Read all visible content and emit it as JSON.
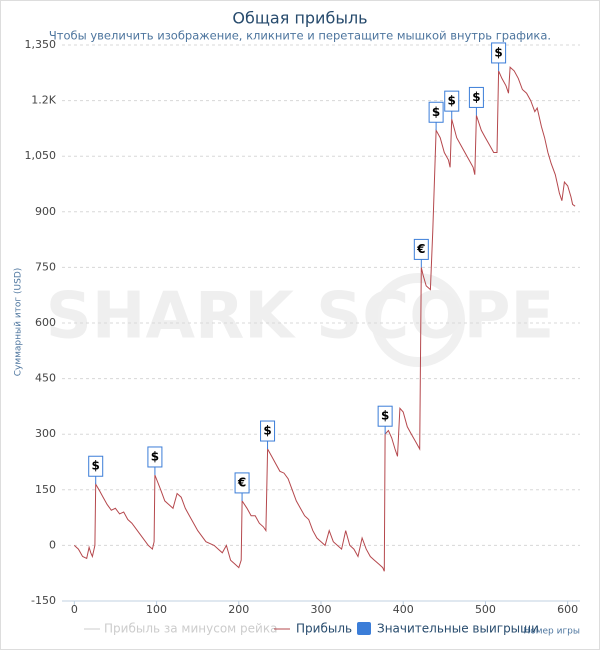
{
  "chart_data": {
    "type": "line",
    "title": "Общая прибыль",
    "subtitle": "Чтобы увеличить изображение, кликните и перетащите мышкой внутрь графика.",
    "ylabel": "Суммарный итог (USD)",
    "xlabel": "Номер игры",
    "watermark": "SHARK SCOPE",
    "xlim": [
      -15,
      615
    ],
    "ylim": [
      -150,
      1350
    ],
    "xticks": [
      0,
      100,
      200,
      300,
      400,
      500,
      600
    ],
    "yticks": [
      -150,
      0,
      150,
      300,
      450,
      600,
      750,
      900,
      {
        "value": 1050,
        "label": "1,050"
      },
      {
        "value": 1200,
        "label": "1.2K"
      },
      {
        "value": 1350,
        "label": "1,350"
      }
    ],
    "grid": true,
    "hidden_series": [
      {
        "name": "Прибыль за минусом рейка",
        "color": "#cccccc"
      }
    ],
    "x": [
      0,
      5,
      10,
      15,
      18,
      20,
      22,
      25,
      26,
      30,
      35,
      40,
      45,
      50,
      55,
      60,
      65,
      70,
      80,
      90,
      95,
      97,
      98,
      105,
      110,
      115,
      120,
      125,
      130,
      135,
      140,
      145,
      150,
      160,
      170,
      175,
      180,
      185,
      190,
      195,
      200,
      203,
      204,
      210,
      215,
      220,
      225,
      230,
      233,
      235,
      240,
      245,
      250,
      255,
      260,
      265,
      270,
      275,
      280,
      285,
      290,
      295,
      300,
      305,
      310,
      315,
      320,
      325,
      330,
      335,
      340,
      345,
      350,
      355,
      360,
      365,
      370,
      375,
      377,
      378,
      382,
      386,
      390,
      393,
      396,
      400,
      405,
      410,
      415,
      420,
      422,
      424,
      428,
      433,
      436,
      440,
      445,
      450,
      455,
      457,
      459,
      465,
      470,
      475,
      480,
      485,
      487,
      489,
      495,
      500,
      505,
      510,
      514,
      516,
      520,
      525,
      528,
      530,
      535,
      540,
      545,
      550,
      555,
      560,
      563,
      568,
      572,
      576,
      580,
      585,
      588,
      590,
      593,
      596,
      600,
      604,
      606,
      609
    ],
    "series": [
      {
        "name": "Прибыль",
        "color": "#b5484d",
        "values": [
          0,
          -10,
          -30,
          -35,
          -5,
          -20,
          -30,
          0,
          165,
          150,
          130,
          110,
          95,
          100,
          85,
          90,
          70,
          60,
          30,
          0,
          -10,
          10,
          190,
          150,
          120,
          110,
          100,
          140,
          130,
          100,
          80,
          60,
          40,
          10,
          0,
          -10,
          -20,
          0,
          -40,
          -50,
          -60,
          -40,
          120,
          100,
          80,
          80,
          60,
          50,
          40,
          260,
          240,
          220,
          200,
          195,
          180,
          150,
          120,
          100,
          80,
          70,
          40,
          20,
          10,
          0,
          40,
          10,
          0,
          -10,
          40,
          0,
          -10,
          -30,
          20,
          -10,
          -30,
          -40,
          -50,
          -60,
          -70,
          300,
          310,
          290,
          260,
          240,
          370,
          360,
          320,
          300,
          280,
          260,
          750,
          730,
          700,
          690,
          850,
          1120,
          1100,
          1060,
          1040,
          1020,
          1150,
          1100,
          1080,
          1060,
          1040,
          1020,
          1000,
          1160,
          1120,
          1100,
          1080,
          1060,
          1060,
          1280,
          1260,
          1240,
          1220,
          1290,
          1280,
          1260,
          1230,
          1220,
          1200,
          1170,
          1180,
          1130,
          1100,
          1060,
          1030,
          1000,
          970,
          950,
          930,
          980,
          970,
          940,
          920,
          915
        ]
      }
    ],
    "flags": {
      "name": "Значительные выигрыши",
      "color": "#3b7dd8",
      "x": [
        26,
        98,
        204,
        235,
        378,
        422,
        440,
        459,
        489,
        516
      ],
      "y": [
        165,
        190,
        120,
        260,
        300,
        750,
        1120,
        1150,
        1160,
        1280
      ],
      "labels": [
        "$",
        "$",
        "€",
        "$",
        "$",
        "€",
        "$",
        "$",
        "$",
        "$"
      ]
    }
  }
}
